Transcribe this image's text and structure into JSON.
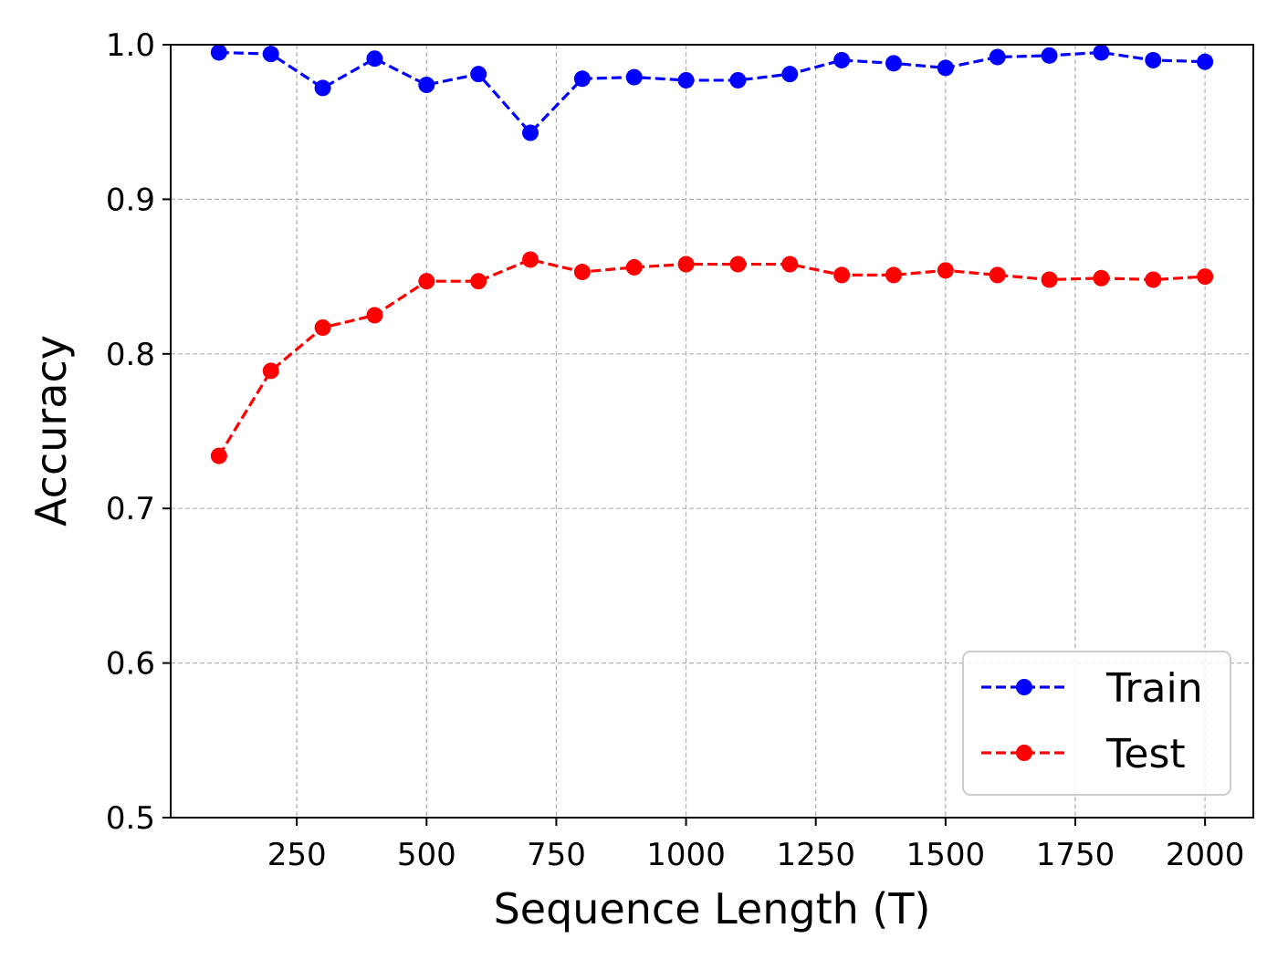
{
  "chart_data": {
    "type": "line",
    "title": "",
    "xlabel": "Sequence Length (T)",
    "ylabel": "Accuracy",
    "x": [
      100,
      200,
      300,
      400,
      500,
      600,
      700,
      800,
      900,
      1000,
      1100,
      1200,
      1300,
      1400,
      1500,
      1600,
      1700,
      1800,
      1900,
      2000
    ],
    "xlim": [
      7,
      2093
    ],
    "ylim": [
      0.5,
      1.0
    ],
    "xticks": [
      250,
      500,
      750,
      1000,
      1250,
      1500,
      1750,
      2000
    ],
    "xtick_labels": [
      "250",
      "500",
      "750",
      "1000",
      "1250",
      "1500",
      "1750",
      "2000"
    ],
    "yticks": [
      0.5,
      0.6,
      0.7,
      0.8,
      0.9,
      1.0
    ],
    "ytick_labels": [
      "0.5",
      "0.6",
      "0.7",
      "0.8",
      "0.9",
      "1.0"
    ],
    "grid": true,
    "legend_position": "bottom-right",
    "series": [
      {
        "name": "Train",
        "color": "#0000ff",
        "line_style": "dashed",
        "marker": "circle",
        "values": [
          0.995,
          0.994,
          0.972,
          0.991,
          0.974,
          0.981,
          0.943,
          0.978,
          0.979,
          0.977,
          0.977,
          0.981,
          0.99,
          0.988,
          0.985,
          0.992,
          0.993,
          0.995,
          0.99,
          0.989
        ]
      },
      {
        "name": "Test",
        "color": "#ff0000",
        "line_style": "dashed",
        "marker": "circle",
        "values": [
          0.734,
          0.789,
          0.817,
          0.825,
          0.847,
          0.847,
          0.861,
          0.853,
          0.856,
          0.858,
          0.858,
          0.858,
          0.851,
          0.851,
          0.854,
          0.851,
          0.848,
          0.849,
          0.848,
          0.85
        ]
      }
    ]
  }
}
